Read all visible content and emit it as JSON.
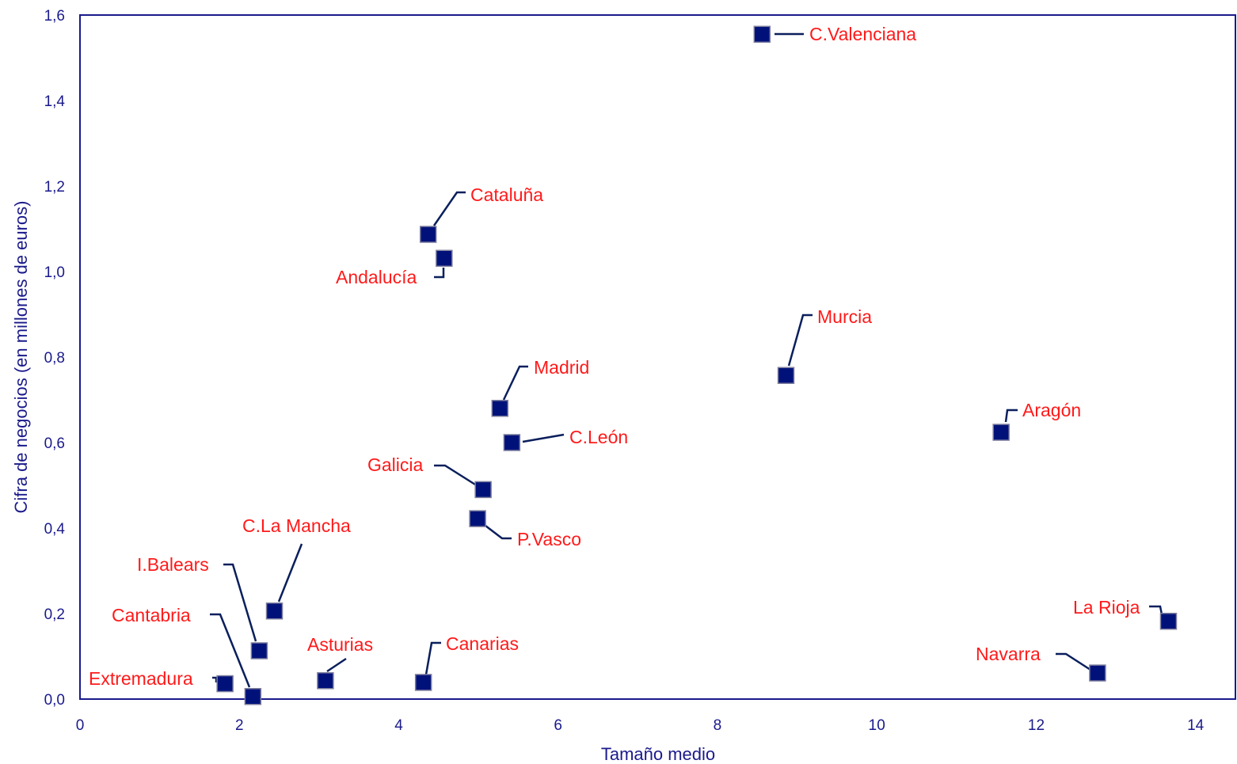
{
  "chart_data": {
    "type": "scatter",
    "title": "",
    "xlabel": "Tamaño medio",
    "ylabel": "Cifra de negocios (en millones de euros)",
    "xlim": [
      0,
      14.5
    ],
    "ylim": [
      0,
      1.6
    ],
    "xticks": [
      "0",
      "2",
      "4",
      "6",
      "8",
      "10",
      "12",
      "14"
    ],
    "yticks": [
      "0,0",
      "0,2",
      "0,4",
      "0,6",
      "0,8",
      "1,0",
      "1,2",
      "1,4",
      "1,6"
    ],
    "grid": false,
    "legend": "none",
    "colors": {
      "marker": "#00127a",
      "label": "#ff1a1a",
      "axis": "#1a1a8c",
      "leader": "#0a1f5c"
    },
    "points": [
      {
        "label": "C.Valenciana",
        "x": 8.56,
        "y": 1.555
      },
      {
        "label": "Cataluña",
        "x": 4.37,
        "y": 1.087
      },
      {
        "label": "Andalucía",
        "x": 4.57,
        "y": 1.031
      },
      {
        "label": "Murcia",
        "x": 8.86,
        "y": 0.757
      },
      {
        "label": "Madrid",
        "x": 5.27,
        "y": 0.68
      },
      {
        "label": "Aragón",
        "x": 11.56,
        "y": 0.624
      },
      {
        "label": "C.León",
        "x": 5.42,
        "y": 0.6
      },
      {
        "label": "Galicia",
        "x": 5.06,
        "y": 0.49
      },
      {
        "label": "P.Vasco",
        "x": 4.99,
        "y": 0.422
      },
      {
        "label": "C.La Mancha",
        "x": 2.44,
        "y": 0.206
      },
      {
        "label": "I.Balears",
        "x": 2.25,
        "y": 0.113
      },
      {
        "label": "La Rioja",
        "x": 13.66,
        "y": 0.182
      },
      {
        "label": "Navarra",
        "x": 12.77,
        "y": 0.061
      },
      {
        "label": "Asturias",
        "x": 3.08,
        "y": 0.043
      },
      {
        "label": "Canarias",
        "x": 4.31,
        "y": 0.039
      },
      {
        "label": "Extremadura",
        "x": 1.82,
        "y": 0.036
      },
      {
        "label": "Cantabria",
        "x": 2.17,
        "y": 0.006
      }
    ]
  }
}
